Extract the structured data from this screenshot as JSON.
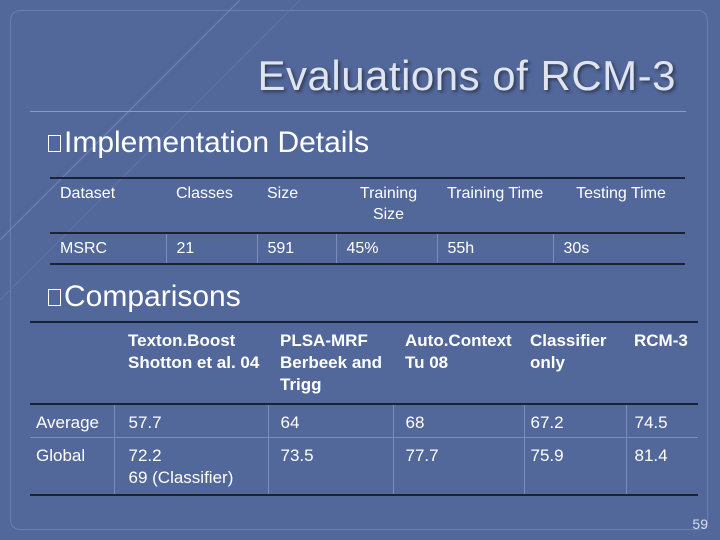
{
  "slide": {
    "title": "Evaluations of RCM-3",
    "bullets": [
      "Implementation Details",
      "Comparisons"
    ],
    "page_number": "59"
  },
  "implementation_table": {
    "headers": [
      "Dataset",
      "Classes",
      "Size",
      "Training Size",
      "Training Time",
      "Testing Time"
    ],
    "row": [
      "MSRC",
      "21",
      "591",
      "45%",
      "55h",
      "30s"
    ]
  },
  "comparison_table": {
    "headers": [
      "",
      "Texton.Boost Shotton et al. 04",
      "PLSA-MRF Berbeek and Trigg",
      "Auto.Context Tu 08",
      "Classifier only",
      "RCM-3"
    ],
    "rows": [
      [
        "Average",
        "57.7",
        "64",
        "68",
        "67.2",
        "74.5"
      ],
      [
        "Global",
        "72.2\n69 (Classifier)",
        "73.5",
        "77.7",
        "75.9",
        "81.4"
      ]
    ]
  },
  "colors": {
    "background": "#52679a",
    "title": "#dfe4ef",
    "rule": "#1d2233"
  }
}
